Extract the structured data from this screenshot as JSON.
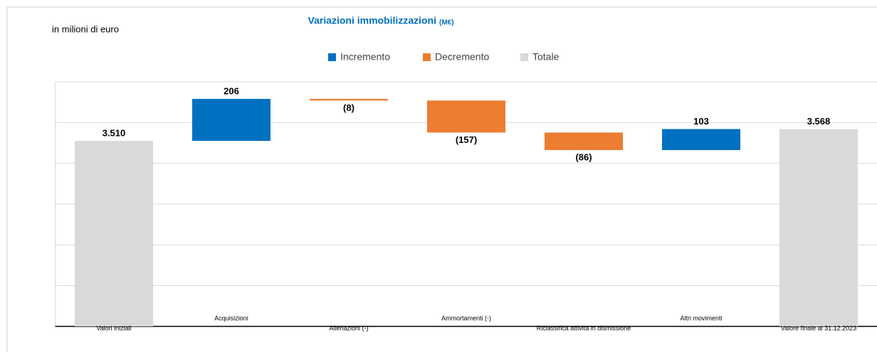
{
  "chart_data": {
    "type": "waterfall",
    "title": "Variazioni immobilizzazioni",
    "title_unit": "(M€)",
    "subtitle": "in milioni di euro",
    "categories": [
      "Valori iniziali",
      "Acquisizioni",
      "Alienazioni (-)",
      "Ammortamenti (-)",
      "Riclassifica attività in dismissione",
      "Altri movimenti",
      "Valore finale al 31.12.2023"
    ],
    "values": [
      3510,
      206,
      -8,
      -157,
      -86,
      103,
      3568
    ],
    "value_labels": [
      "3.510",
      "206",
      "(8)",
      "(157)",
      "(86)",
      "103",
      "3.568"
    ],
    "measures": [
      "total",
      "increase",
      "decrease",
      "decrease",
      "decrease",
      "increase",
      "total"
    ],
    "legend": [
      {
        "name": "Incremento",
        "color": "#0070c0"
      },
      {
        "name": "Decremento",
        "color": "#ed7d31"
      },
      {
        "name": "Totale",
        "color": "#d9d9d9"
      }
    ],
    "ylim": [
      2600,
      3800
    ],
    "yticks": [
      2600,
      2800,
      3000,
      3200,
      3400,
      3600,
      3800
    ],
    "grid": true
  }
}
